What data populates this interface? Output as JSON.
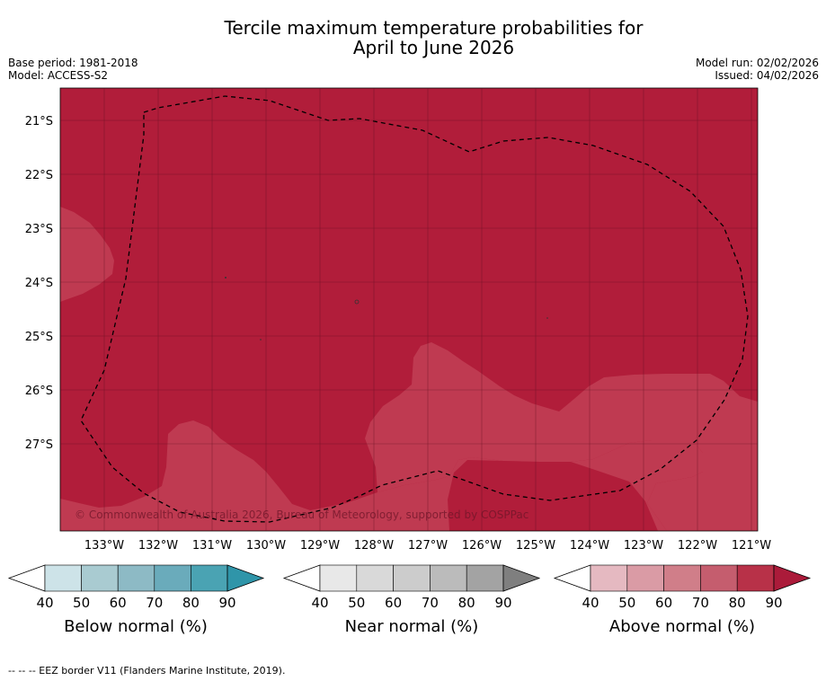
{
  "title_line1": "Tercile maximum temperature probabilities for",
  "title_line2": "April to June 2026",
  "base_period": "Base period: 1981-2018",
  "model": "Model: ACCESS-S2",
  "model_run": "Model run: 02/02/2026",
  "issued": "Issued: 04/02/2026",
  "copyright": "© Commonwealth of Australia 2026, Bureau of Meteorology, supported by COSPPac",
  "footnote": "--  --  -- EEZ border V11 (Flanders Marine Institute, 2019).",
  "map": {
    "lat_labels": [
      "21°S",
      "22°S",
      "23°S",
      "24°S",
      "25°S",
      "26°S",
      "27°S"
    ],
    "lon_labels": [
      "133°W",
      "132°W",
      "131°W",
      "130°W",
      "129°W",
      "128°W",
      "127°W",
      "126°W",
      "125°W",
      "124°W",
      "123°W",
      "122°W",
      "121°W"
    ],
    "colors": {
      "above_80_90": "#b11d3a",
      "above_70_80": "#c0384f",
      "ocean_base": "#b11d3a"
    }
  },
  "colorbars": [
    {
      "title": "Below normal (%)",
      "ticks": [
        "40",
        "50",
        "60",
        "70",
        "80",
        "90"
      ],
      "colors": [
        "#cde3e8",
        "#a9cbd1",
        "#8dbac5",
        "#6aabbb",
        "#4aa3b3"
      ],
      "over_color": "#2f95a9"
    },
    {
      "title": "Near normal (%)",
      "ticks": [
        "40",
        "50",
        "60",
        "70",
        "80",
        "90"
      ],
      "colors": [
        "#e8e8e8",
        "#d9d9d9",
        "#cccccc",
        "#bbbbbb",
        "#a3a3a3"
      ],
      "over_color": "#7f7f7f"
    },
    {
      "title": "Above normal (%)",
      "ticks": [
        "40",
        "50",
        "60",
        "70",
        "80",
        "90"
      ],
      "colors": [
        "#e5b9c1",
        "#da9ba5",
        "#d07e89",
        "#c55d6e",
        "#b83148"
      ],
      "over_color": "#ab1b3a"
    }
  ]
}
